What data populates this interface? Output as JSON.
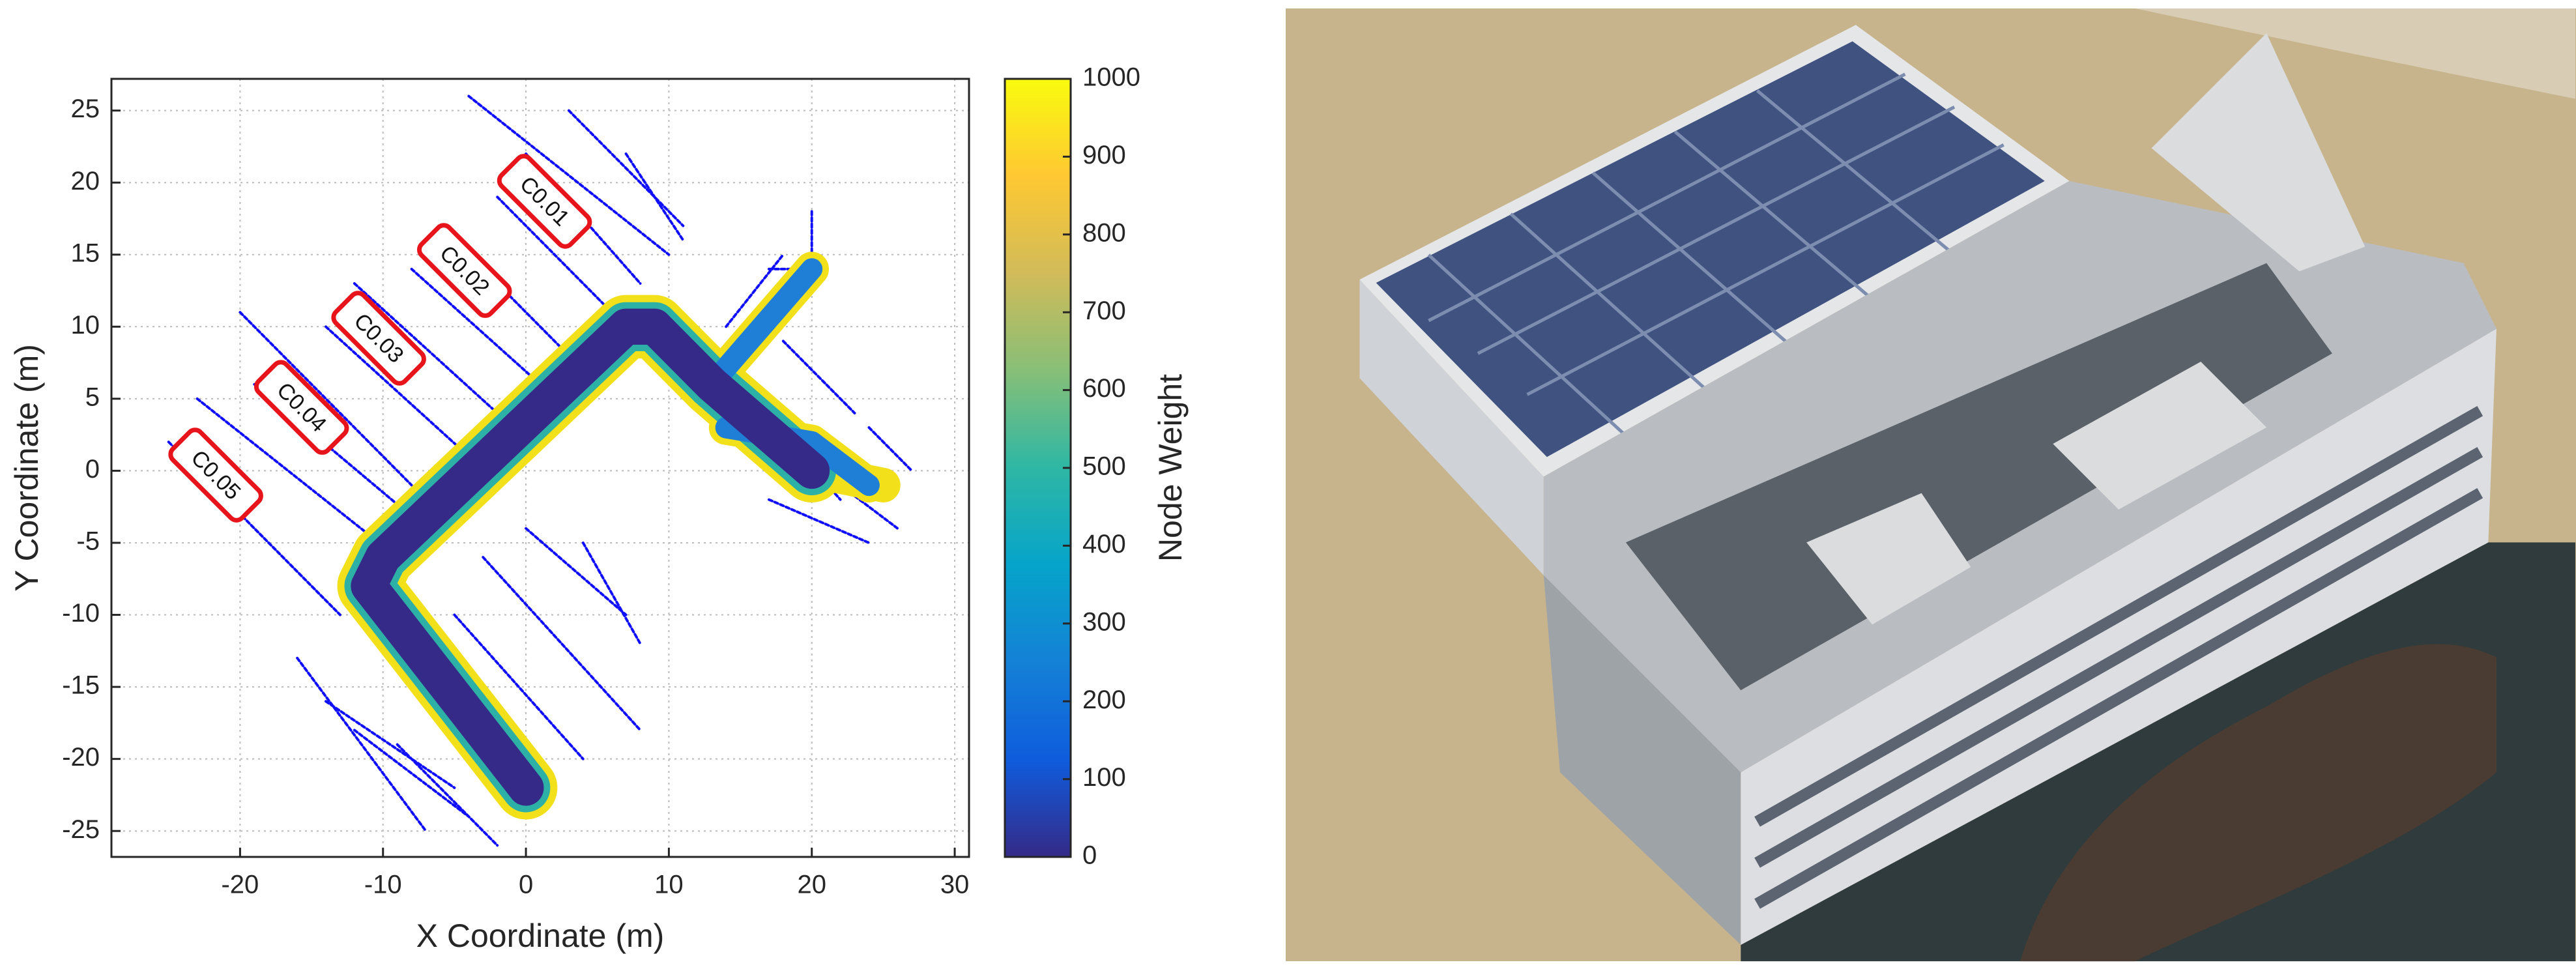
{
  "chart_data": {
    "type": "map",
    "xlabel": "X Coordinate (m)",
    "ylabel": "Y Coordinate (m)",
    "xlim": [
      -29,
      31
    ],
    "ylim": [
      -26.8,
      27.2
    ],
    "xticks": [
      -20,
      -10,
      0,
      10,
      20,
      30
    ],
    "yticks": [
      -25,
      -20,
      -15,
      -10,
      -5,
      0,
      5,
      10,
      15,
      20,
      25
    ],
    "grid": true,
    "annotations": [
      "C0.01",
      "C0.02",
      "C0.03",
      "C0.04",
      "C0.05"
    ],
    "colorbar": {
      "label": "Node Weight",
      "clim": [
        0,
        1000
      ],
      "ticks": [
        0,
        100,
        200,
        300,
        400,
        500,
        600,
        700,
        800,
        900,
        1000
      ]
    }
  }
}
